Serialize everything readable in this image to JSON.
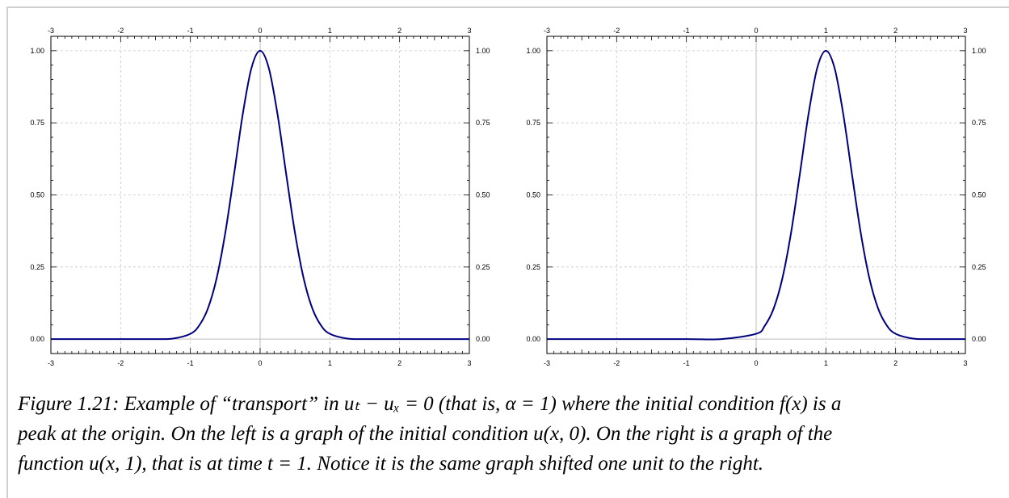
{
  "chart_data": [
    {
      "type": "line",
      "function": "exp(-4*(x-0)^2)",
      "x": [
        -3,
        -2.5,
        -2,
        -1.5,
        -1.25,
        -1,
        -0.875,
        -0.75,
        -0.625,
        -0.5,
        -0.375,
        -0.25,
        -0.125,
        0,
        0.125,
        0.25,
        0.375,
        0.5,
        0.625,
        0.75,
        0.875,
        1,
        1.25,
        1.5,
        2,
        2.5,
        3
      ],
      "y": [
        0.0,
        0.0,
        0.0,
        0.0001,
        0.0019,
        0.0183,
        0.0468,
        0.1054,
        0.2096,
        0.3679,
        0.5698,
        0.7788,
        0.9394,
        1.0,
        0.9394,
        0.7788,
        0.5698,
        0.3679,
        0.2096,
        0.1054,
        0.0468,
        0.0183,
        0.0019,
        0.0001,
        0.0,
        0.0,
        0.0
      ],
      "xlim": [
        -3,
        3
      ],
      "ylim": [
        -0.05,
        1.05
      ],
      "xticks": [
        "-3",
        "-2",
        "-1",
        "0",
        "1",
        "2",
        "3"
      ],
      "yticks": [
        "0.00",
        "0.25",
        "0.50",
        "0.75",
        "1.00"
      ],
      "grid": true,
      "line_color": "#00007f"
    },
    {
      "type": "line",
      "function": "exp(-4*(x-1)^2)",
      "x": [
        -3,
        -2,
        -1,
        -0.5,
        0,
        0.125,
        0.25,
        0.375,
        0.5,
        0.625,
        0.75,
        0.875,
        1,
        1.125,
        1.25,
        1.375,
        1.5,
        1.625,
        1.75,
        1.875,
        2,
        2.25,
        2.5,
        3
      ],
      "y": [
        0.0,
        0.0,
        0.0,
        0.0001,
        0.0183,
        0.0468,
        0.1054,
        0.2096,
        0.3679,
        0.5698,
        0.7788,
        0.9394,
        1.0,
        0.9394,
        0.7788,
        0.5698,
        0.3679,
        0.2096,
        0.1054,
        0.0468,
        0.0183,
        0.0019,
        0.0001,
        0.0
      ],
      "xlim": [
        -3,
        3
      ],
      "ylim": [
        -0.05,
        1.05
      ],
      "xticks": [
        "-3",
        "-2",
        "-1",
        "0",
        "1",
        "2",
        "3"
      ],
      "yticks": [
        "0.00",
        "0.25",
        "0.50",
        "0.75",
        "1.00"
      ],
      "grid": true,
      "line_color": "#00007f"
    }
  ],
  "caption": {
    "line1": "Figure 1.21: Example of “transport” in uₜ − uₓ = 0 (that is, α = 1) where the initial condition f(x) is a",
    "line2": "peak at the origin. On the left is a graph of the initial condition u(x, 0). On the right is a graph of the",
    "line3": "function u(x, 1), that is at time t = 1. Notice it is the same graph shifted one unit to the right."
  }
}
